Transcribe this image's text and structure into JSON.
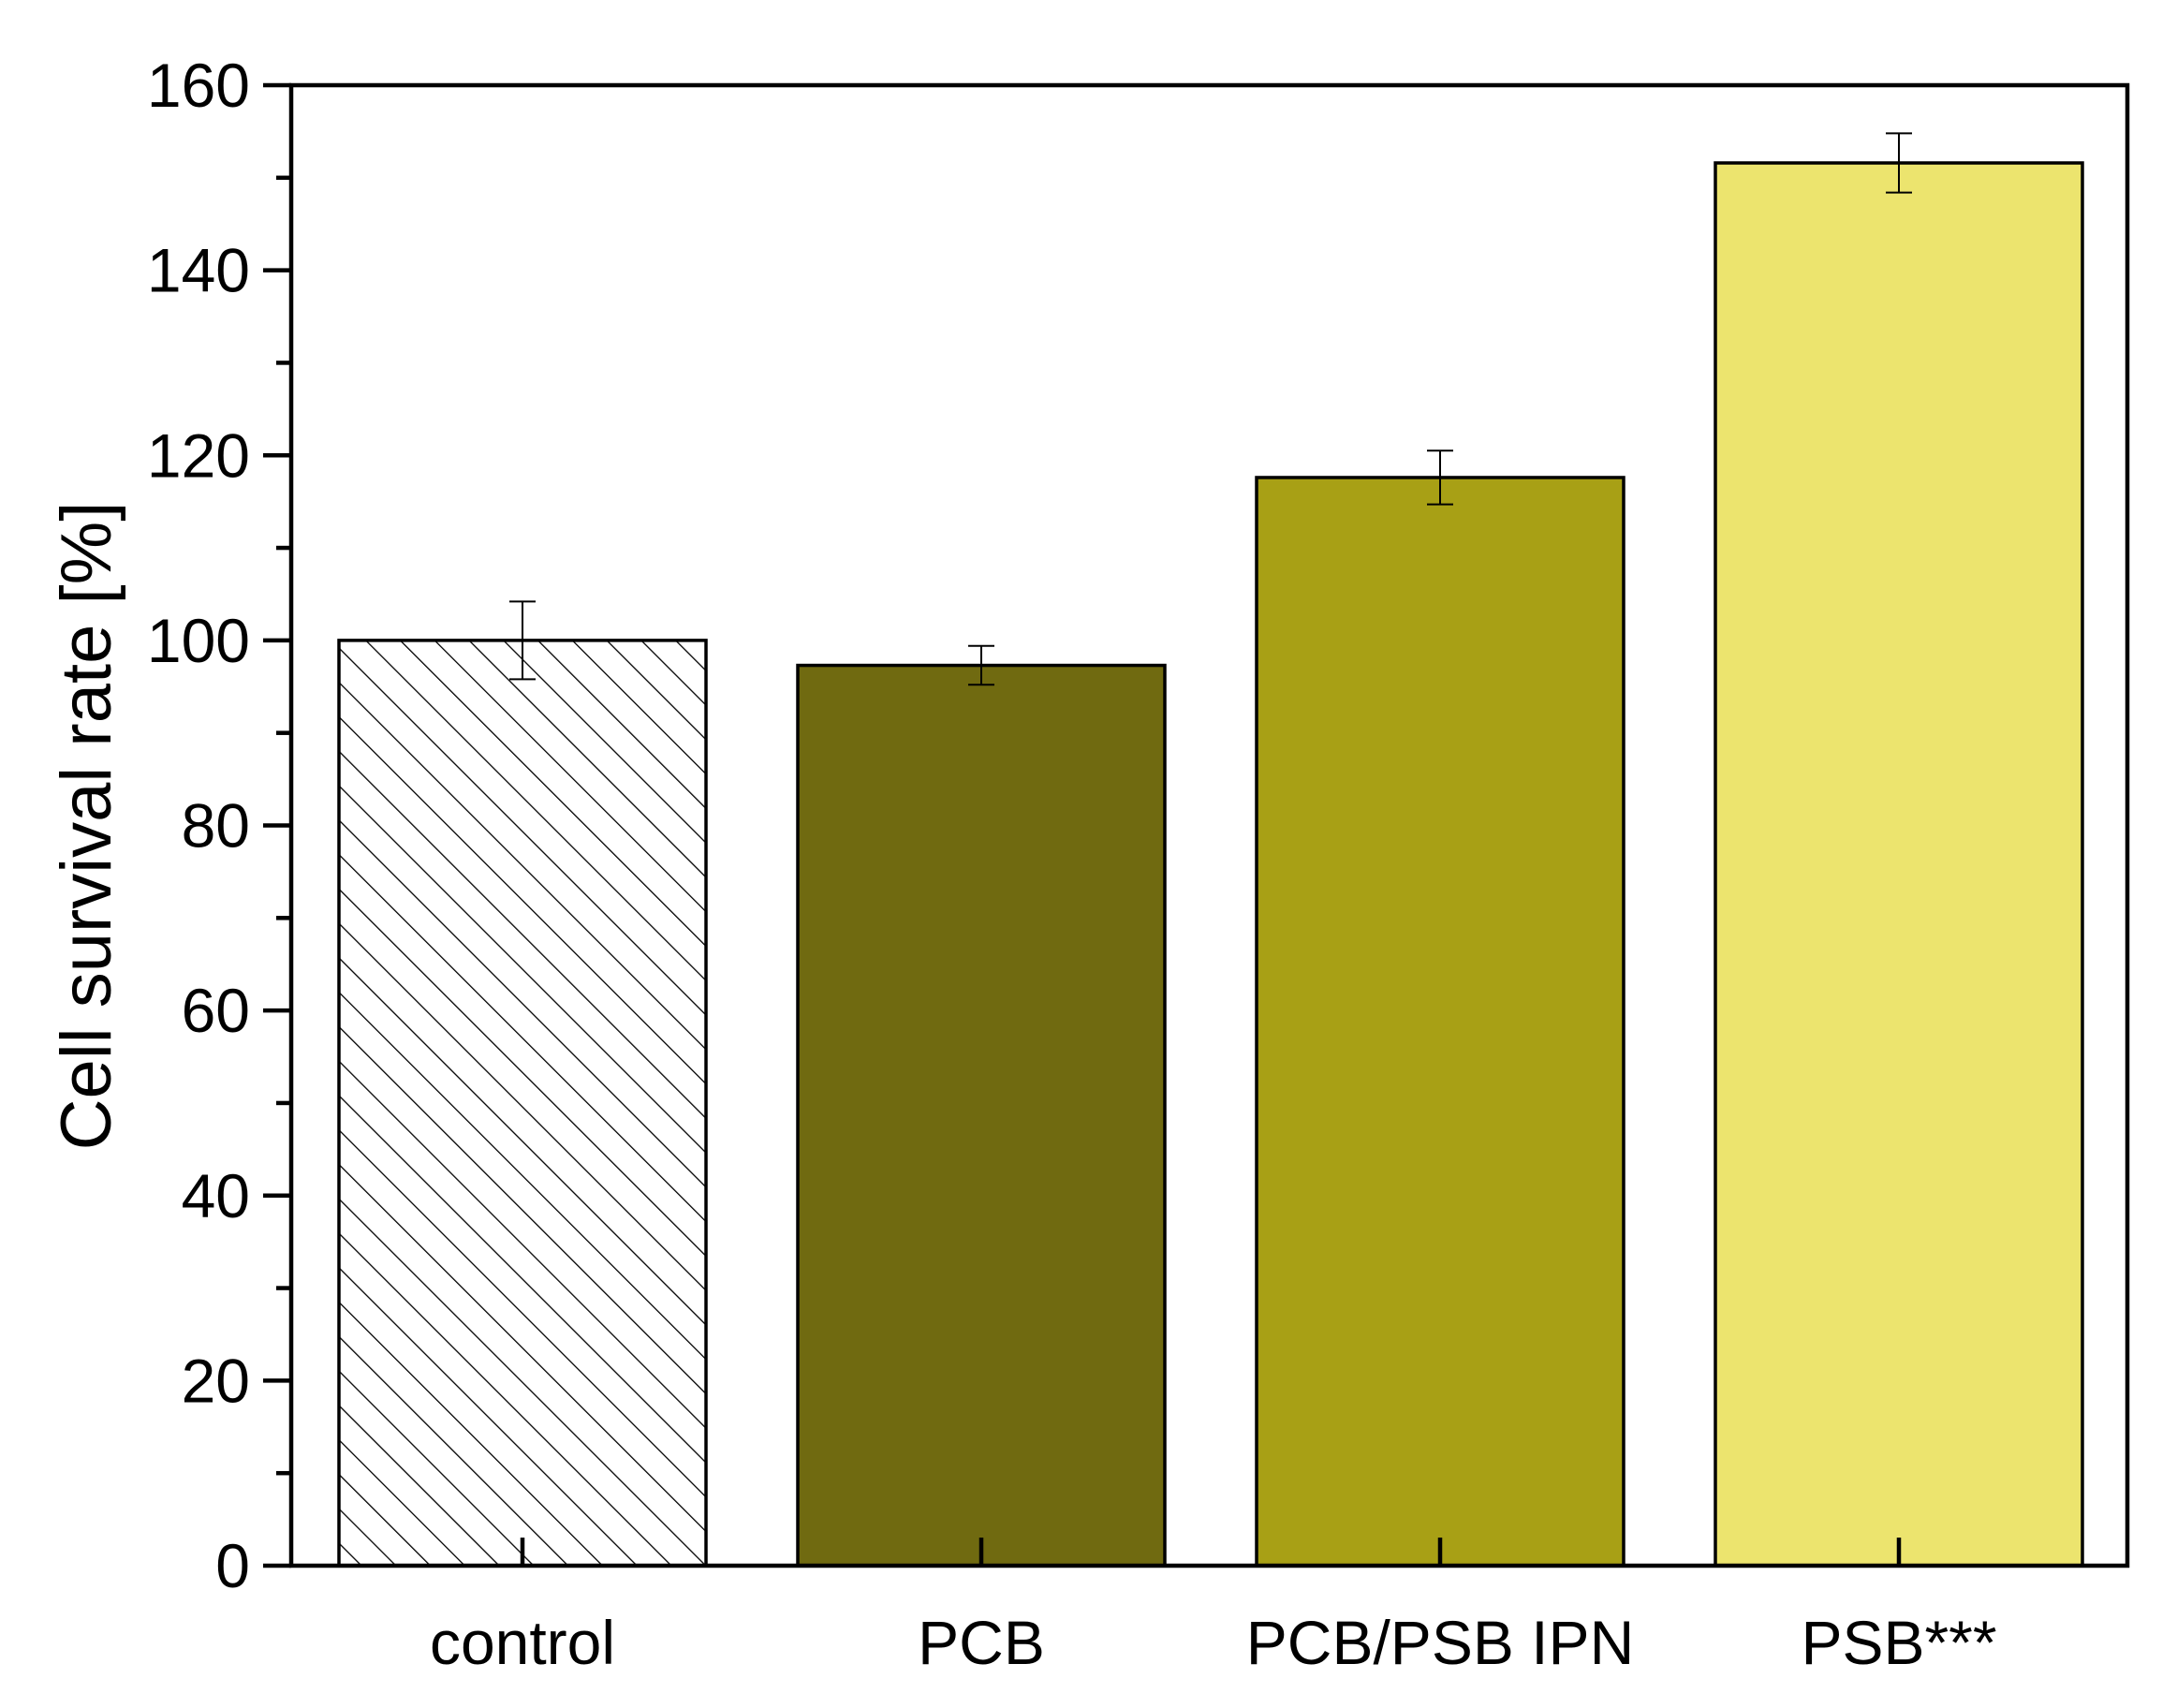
{
  "chart_data": {
    "type": "bar",
    "categories": [
      "control",
      "PCB",
      "PCB/PSB IPN",
      "PSB***"
    ],
    "values": [
      100.0,
      97.3,
      117.6,
      151.6
    ],
    "errors": [
      4.2,
      2.1,
      2.9,
      3.2
    ],
    "colors": [
      "hatched",
      "#706a10",
      "#a8a015",
      "#ece46e"
    ],
    "xlabel": "",
    "ylabel": "Cell survival rate [%]",
    "ylim": [
      0,
      160
    ],
    "yticks": [
      "0",
      "20",
      "40",
      "60",
      "80",
      "100",
      "120",
      "140",
      "160"
    ],
    "grid": false,
    "legend": "none"
  }
}
